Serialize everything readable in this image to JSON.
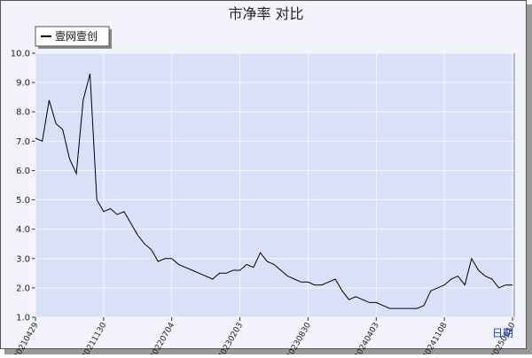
{
  "chart_data": {
    "type": "line",
    "title": "市净率  对比",
    "x_label": "日期",
    "categories": [
      "20210429",
      null,
      null,
      null,
      null,
      null,
      null,
      null,
      null,
      null,
      "20211130",
      null,
      null,
      null,
      null,
      null,
      null,
      null,
      null,
      null,
      "20220704",
      null,
      null,
      null,
      null,
      null,
      null,
      null,
      null,
      null,
      "20230203",
      null,
      null,
      null,
      null,
      null,
      null,
      null,
      null,
      null,
      "20230830",
      null,
      null,
      null,
      null,
      null,
      null,
      null,
      null,
      null,
      "20240403",
      null,
      null,
      null,
      null,
      null,
      null,
      null,
      null,
      null,
      "20241108",
      null,
      null,
      null,
      null,
      null,
      null,
      null,
      null,
      null,
      "20250610"
    ],
    "series": [
      {
        "name": "壹网壹创",
        "color": "#000000",
        "values": [
          7.1,
          7.0,
          8.4,
          7.6,
          7.4,
          6.4,
          5.9,
          8.4,
          9.3,
          5.0,
          4.6,
          4.7,
          4.5,
          4.6,
          4.2,
          3.8,
          3.5,
          3.3,
          2.9,
          3.0,
          3.0,
          2.8,
          2.7,
          2.6,
          2.5,
          2.4,
          2.3,
          2.5,
          2.5,
          2.6,
          2.6,
          2.8,
          2.7,
          3.2,
          2.9,
          2.8,
          2.6,
          2.4,
          2.3,
          2.2,
          2.2,
          2.1,
          2.1,
          2.2,
          2.3,
          1.9,
          1.6,
          1.7,
          1.6,
          1.5,
          1.5,
          1.4,
          1.3,
          1.3,
          1.3,
          1.3,
          1.3,
          1.4,
          1.9,
          2.0,
          2.1,
          2.3,
          2.4,
          2.1,
          3.0,
          2.6,
          2.4,
          2.3,
          2.0,
          2.1,
          2.1
        ]
      }
    ],
    "ylim": [
      1.0,
      10.0
    ],
    "yticks": [
      {
        "value": 1,
        "label": "1.0"
      },
      {
        "value": 2,
        "label": "2.0"
      },
      {
        "value": 3,
        "label": "3.0"
      },
      {
        "value": 4,
        "label": "4.0"
      },
      {
        "value": 5,
        "label": "5.0"
      },
      {
        "value": 6,
        "label": "6.0"
      },
      {
        "value": 7,
        "label": "7.0"
      },
      {
        "value": 8,
        "label": "8.0"
      },
      {
        "value": 9,
        "label": "9.0"
      },
      {
        "value": 10,
        "label": "10.0"
      }
    ],
    "grid": true,
    "legend": "top-left"
  }
}
